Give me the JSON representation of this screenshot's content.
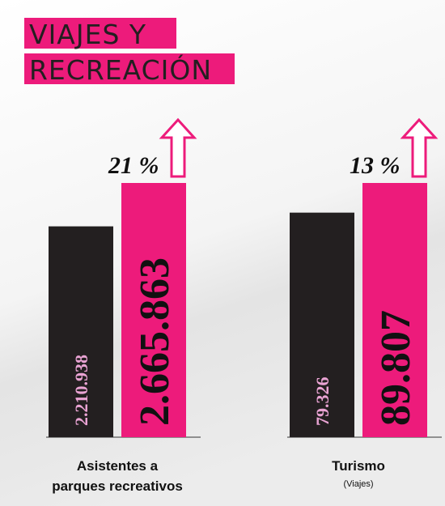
{
  "title_lines": [
    "VIAJES Y",
    "RECREACIÓN"
  ],
  "chart_data": [
    {
      "type": "bar",
      "label_lines": [
        "Asistentes a",
        "parques recreativos"
      ],
      "values": [
        2210938,
        2665863
      ],
      "value_labels": [
        "2.210.938",
        "2.665.863"
      ],
      "colors": [
        "#231f20",
        "#ed1b7b"
      ],
      "change_label": "21 %"
    },
    {
      "type": "bar",
      "label_lines": [
        "Turismo"
      ],
      "note": "(Viajes)",
      "values": [
        79326,
        89807
      ],
      "value_labels": [
        "79.326",
        "89.807"
      ],
      "colors": [
        "#231f20",
        "#ed1b7b"
      ],
      "change_label": "13 %"
    }
  ]
}
